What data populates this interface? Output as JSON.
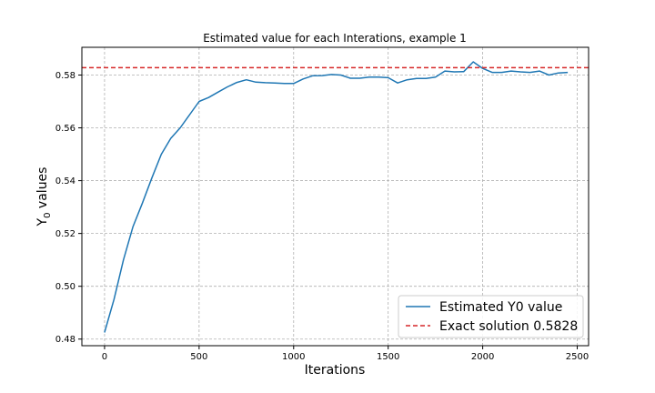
{
  "chart_data": {
    "type": "line",
    "title": "Estimated value for each Interations, example 1",
    "xlabel": "Iterations",
    "ylabel_main": "Y",
    "ylabel_sub": "0",
    "ylabel_rest": " values",
    "xlim": [
      -120,
      2560
    ],
    "ylim": [
      0.4775,
      0.5905
    ],
    "xticks": [
      0,
      500,
      1000,
      1500,
      2000,
      2500
    ],
    "yticks": [
      0.48,
      0.5,
      0.52,
      0.54,
      0.56,
      0.58
    ],
    "ytick_labels": [
      "0.48",
      "0.50",
      "0.52",
      "0.54",
      "0.56",
      "0.58"
    ],
    "grid": true,
    "legend_position": "lower-right",
    "series": [
      {
        "name": "Estimated Y0 value",
        "color": "#1f77b4",
        "style": "solid",
        "x": [
          0,
          50,
          100,
          150,
          200,
          250,
          300,
          350,
          400,
          450,
          500,
          550,
          600,
          650,
          700,
          750,
          800,
          850,
          900,
          950,
          1000,
          1050,
          1100,
          1150,
          1200,
          1250,
          1300,
          1350,
          1400,
          1450,
          1500,
          1550,
          1600,
          1650,
          1700,
          1750,
          1800,
          1850,
          1900,
          1950,
          2000,
          2050,
          2100,
          2150,
          2200,
          2250,
          2300,
          2350,
          2400,
          2450
        ],
        "y": [
          0.4825,
          0.495,
          0.51,
          0.5225,
          0.5315,
          0.541,
          0.55,
          0.556,
          0.56,
          0.565,
          0.57,
          0.5715,
          0.5735,
          0.5755,
          0.5772,
          0.5782,
          0.5773,
          0.5771,
          0.577,
          0.5768,
          0.5768,
          0.5785,
          0.5797,
          0.5798,
          0.5802,
          0.58,
          0.5788,
          0.5788,
          0.5792,
          0.5792,
          0.579,
          0.577,
          0.5782,
          0.5787,
          0.5787,
          0.5792,
          0.5815,
          0.5812,
          0.5813,
          0.585,
          0.5825,
          0.581,
          0.581,
          0.5815,
          0.5812,
          0.581,
          0.5815,
          0.58,
          0.5808,
          0.581
        ]
      },
      {
        "name": "Exact solution 0.5828",
        "color": "#d62728",
        "style": "dashed",
        "value": 0.5828
      }
    ]
  }
}
